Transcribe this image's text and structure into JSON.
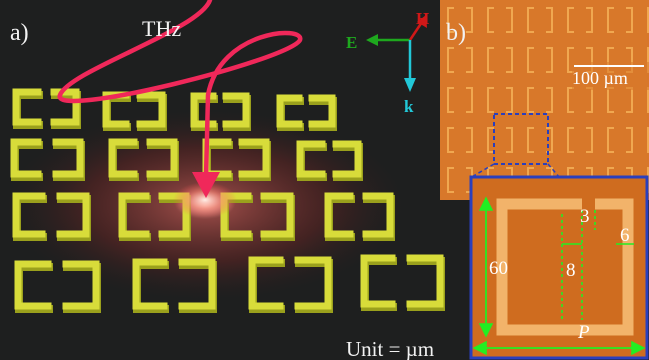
{
  "panel_a": {
    "label": "a)",
    "beam_label": "THz",
    "axes": {
      "e": "E",
      "h": "H",
      "k": "k"
    },
    "unit_note": "Unit = µm",
    "colors": {
      "background": "#1e1f1f",
      "srr": "#d8dc3a",
      "glow": "#c0392b",
      "beam": "#f0285a",
      "e_axis": "#1ea81e",
      "h_axis": "#d01818",
      "k_axis": "#22c8d8"
    }
  },
  "panel_b": {
    "label": "b)",
    "scale_bar": "100 µm",
    "colors": {
      "background": "#d8782a",
      "ring": "#f0a850"
    }
  },
  "inset": {
    "dims": {
      "gap": "3",
      "width": "6",
      "side": "60",
      "gap_offset": "8",
      "period": "P"
    },
    "colors": {
      "background": "#cf6c1f",
      "ring": "#f2b36a",
      "border": "#2a3fbd",
      "dim_lines": "#22ee22"
    }
  }
}
